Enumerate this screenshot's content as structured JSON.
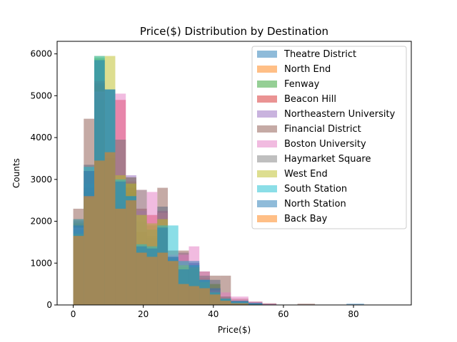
{
  "chart_data": {
    "type": "bar",
    "title": "Price($) Distribution by Destination",
    "xlabel": "Price($)",
    "ylabel": "Counts",
    "xlim": [
      -4.6,
      96.5
    ],
    "ylim": [
      0,
      6300
    ],
    "xticks": [
      0,
      20,
      40,
      60,
      80
    ],
    "yticks": [
      0,
      1000,
      2000,
      3000,
      4000,
      5000,
      6000
    ],
    "grid": false,
    "legend_position": "top-right",
    "bar_opacity": 0.5,
    "series": [
      {
        "name": "Theatre District",
        "color": "#1f77b4",
        "bins": [
          [
            0,
            3,
            2000
          ],
          [
            3,
            6,
            3350
          ],
          [
            6,
            9,
            5300
          ],
          [
            9,
            12,
            5150
          ],
          [
            12,
            15,
            2650
          ],
          [
            15,
            18,
            2900
          ],
          [
            18,
            21,
            2000
          ],
          [
            21,
            24,
            1600
          ],
          [
            24,
            27,
            2350
          ],
          [
            27,
            30,
            1150
          ],
          [
            30,
            33,
            950
          ],
          [
            33,
            36,
            1000
          ],
          [
            36,
            39,
            600
          ],
          [
            39,
            42,
            600
          ],
          [
            42,
            45,
            150
          ],
          [
            45,
            50,
            100
          ],
          [
            50,
            54,
            60
          ],
          [
            54,
            58,
            20
          ]
        ]
      },
      {
        "name": "North End",
        "color": "#ff7f0e",
        "bins": [
          [
            0,
            3,
            1650
          ],
          [
            3,
            6,
            3200
          ],
          [
            6,
            9,
            5250
          ],
          [
            9,
            12,
            3650
          ],
          [
            12,
            15,
            2400
          ],
          [
            15,
            18,
            2950
          ],
          [
            18,
            21,
            1500
          ],
          [
            21,
            24,
            1300
          ],
          [
            24,
            27,
            1800
          ],
          [
            27,
            30,
            950
          ],
          [
            30,
            33,
            700
          ],
          [
            33,
            36,
            900
          ],
          [
            36,
            39,
            400
          ],
          [
            39,
            42,
            350
          ],
          [
            42,
            45,
            100
          ],
          [
            45,
            50,
            60
          ],
          [
            50,
            54,
            20
          ]
        ]
      },
      {
        "name": "Fenway",
        "color": "#2ca02c",
        "bins": [
          [
            0,
            3,
            1950
          ],
          [
            3,
            6,
            2700
          ],
          [
            6,
            9,
            5900
          ],
          [
            9,
            12,
            3400
          ],
          [
            12,
            15,
            2400
          ],
          [
            15,
            18,
            2700
          ],
          [
            18,
            21,
            2750
          ],
          [
            21,
            24,
            1650
          ],
          [
            24,
            27,
            1800
          ],
          [
            27,
            30,
            1000
          ],
          [
            30,
            33,
            850
          ],
          [
            33,
            36,
            950
          ],
          [
            36,
            39,
            550
          ],
          [
            39,
            42,
            500
          ],
          [
            42,
            45,
            120
          ],
          [
            45,
            50,
            80
          ],
          [
            50,
            54,
            30
          ]
        ]
      },
      {
        "name": "Beacon Hill",
        "color": "#d62728",
        "bins": [
          [
            0,
            3,
            2050
          ],
          [
            3,
            6,
            2800
          ],
          [
            6,
            9,
            5350
          ],
          [
            9,
            12,
            3550
          ],
          [
            12,
            15,
            4900
          ],
          [
            15,
            18,
            2800
          ],
          [
            18,
            21,
            2300
          ],
          [
            21,
            24,
            2150
          ],
          [
            24,
            27,
            2200
          ],
          [
            27,
            30,
            1150
          ],
          [
            30,
            33,
            1050
          ],
          [
            33,
            36,
            900
          ],
          [
            36,
            39,
            650
          ],
          [
            39,
            42,
            400
          ],
          [
            42,
            45,
            200
          ],
          [
            45,
            50,
            80
          ],
          [
            50,
            54,
            30
          ]
        ]
      },
      {
        "name": "Northeastern University",
        "color": "#9467bd",
        "bins": [
          [
            0,
            3,
            1900
          ],
          [
            3,
            6,
            3200
          ],
          [
            6,
            9,
            5100
          ],
          [
            9,
            12,
            3650
          ],
          [
            12,
            15,
            2700
          ],
          [
            15,
            18,
            3100
          ],
          [
            18,
            21,
            2250
          ],
          [
            21,
            24,
            1950
          ],
          [
            24,
            27,
            2250
          ],
          [
            27,
            30,
            1150
          ],
          [
            30,
            33,
            1250
          ],
          [
            33,
            36,
            1000
          ],
          [
            36,
            39,
            700
          ],
          [
            39,
            42,
            400
          ],
          [
            42,
            45,
            200
          ],
          [
            45,
            50,
            100
          ],
          [
            50,
            54,
            40
          ]
        ]
      },
      {
        "name": "Financial District",
        "color": "#8c564b",
        "bins": [
          [
            0,
            3,
            2300
          ],
          [
            3,
            6,
            4450
          ],
          [
            6,
            9,
            5050
          ],
          [
            9,
            12,
            3500
          ],
          [
            12,
            15,
            3950
          ],
          [
            15,
            18,
            3050
          ],
          [
            18,
            21,
            1750
          ],
          [
            21,
            24,
            1900
          ],
          [
            24,
            27,
            2800
          ],
          [
            27,
            30,
            1300
          ],
          [
            30,
            33,
            1300
          ],
          [
            33,
            36,
            900
          ],
          [
            36,
            39,
            800
          ],
          [
            39,
            42,
            700
          ],
          [
            42,
            45,
            700
          ],
          [
            45,
            50,
            150
          ],
          [
            50,
            54,
            80
          ],
          [
            54,
            58,
            40
          ],
          [
            64,
            69,
            30
          ]
        ]
      },
      {
        "name": "Boston University",
        "color": "#e377c2",
        "bins": [
          [
            0,
            3,
            1850
          ],
          [
            3,
            6,
            2600
          ],
          [
            6,
            9,
            5100
          ],
          [
            9,
            12,
            5150
          ],
          [
            12,
            15,
            5050
          ],
          [
            15,
            18,
            2550
          ],
          [
            18,
            21,
            2750
          ],
          [
            21,
            24,
            2700
          ],
          [
            24,
            27,
            2200
          ],
          [
            27,
            30,
            1200
          ],
          [
            30,
            33,
            1200
          ],
          [
            33,
            36,
            1400
          ],
          [
            36,
            39,
            800
          ],
          [
            39,
            42,
            350
          ],
          [
            42,
            45,
            300
          ],
          [
            45,
            50,
            200
          ],
          [
            50,
            54,
            80
          ],
          [
            54,
            58,
            30
          ]
        ]
      },
      {
        "name": "Haymarket Square",
        "color": "#7f7f7f",
        "bins": [
          [
            0,
            3,
            1800
          ],
          [
            3,
            6,
            2900
          ],
          [
            6,
            9,
            4900
          ],
          [
            9,
            12,
            3600
          ],
          [
            12,
            15,
            3950
          ],
          [
            15,
            18,
            3050
          ],
          [
            18,
            21,
            2300
          ],
          [
            21,
            24,
            1800
          ],
          [
            24,
            27,
            2200
          ],
          [
            27,
            30,
            1100
          ],
          [
            30,
            33,
            900
          ],
          [
            33,
            36,
            850
          ],
          [
            36,
            39,
            700
          ],
          [
            39,
            42,
            400
          ],
          [
            42,
            45,
            200
          ],
          [
            45,
            50,
            100
          ],
          [
            50,
            54,
            40
          ]
        ]
      },
      {
        "name": "West End",
        "color": "#bcbd22",
        "bins": [
          [
            0,
            3,
            1700
          ],
          [
            3,
            6,
            2550
          ],
          [
            6,
            9,
            5950
          ],
          [
            9,
            12,
            5950
          ],
          [
            12,
            15,
            3100
          ],
          [
            15,
            18,
            2900
          ],
          [
            18,
            21,
            2150
          ],
          [
            21,
            24,
            1950
          ],
          [
            24,
            27,
            2050
          ],
          [
            27,
            30,
            1050
          ],
          [
            30,
            33,
            950
          ],
          [
            33,
            36,
            900
          ],
          [
            36,
            39,
            550
          ],
          [
            39,
            42,
            300
          ],
          [
            42,
            45,
            150
          ],
          [
            45,
            50,
            60
          ],
          [
            50,
            54,
            20
          ]
        ]
      },
      {
        "name": "South Station",
        "color": "#17becf",
        "bins": [
          [
            0,
            3,
            2050
          ],
          [
            3,
            6,
            3300
          ],
          [
            6,
            9,
            5950
          ],
          [
            9,
            12,
            5150
          ],
          [
            12,
            15,
            3000
          ],
          [
            15,
            18,
            2600
          ],
          [
            18,
            21,
            1450
          ],
          [
            21,
            24,
            1400
          ],
          [
            24,
            27,
            1900
          ],
          [
            27,
            30,
            1900
          ],
          [
            30,
            33,
            1050
          ],
          [
            33,
            36,
            950
          ],
          [
            36,
            39,
            600
          ],
          [
            39,
            42,
            300
          ],
          [
            42,
            45,
            150
          ],
          [
            45,
            50,
            80
          ],
          [
            50,
            54,
            30
          ]
        ]
      },
      {
        "name": "North Station",
        "color": "#1f77b4",
        "bins": [
          [
            0,
            3,
            1900
          ],
          [
            3,
            6,
            3200
          ],
          [
            6,
            9,
            5850
          ],
          [
            9,
            12,
            5150
          ],
          [
            12,
            15,
            2950
          ],
          [
            15,
            18,
            2600
          ],
          [
            18,
            21,
            1400
          ],
          [
            21,
            24,
            1350
          ],
          [
            24,
            27,
            1850
          ],
          [
            27,
            30,
            1150
          ],
          [
            30,
            33,
            850
          ],
          [
            33,
            36,
            1050
          ],
          [
            36,
            39,
            600
          ],
          [
            39,
            42,
            400
          ],
          [
            42,
            45,
            150
          ],
          [
            45,
            50,
            100
          ],
          [
            50,
            54,
            50
          ],
          [
            78,
            83,
            30
          ]
        ]
      },
      {
        "name": "Back Bay",
        "color": "#ff7f0e",
        "bins": [
          [
            0,
            3,
            1650
          ],
          [
            3,
            6,
            2600
          ],
          [
            6,
            9,
            3450
          ],
          [
            9,
            12,
            3650
          ],
          [
            12,
            15,
            2300
          ],
          [
            15,
            18,
            2500
          ],
          [
            18,
            21,
            1250
          ],
          [
            21,
            24,
            1150
          ],
          [
            24,
            27,
            1250
          ],
          [
            27,
            30,
            1050
          ],
          [
            30,
            33,
            500
          ],
          [
            33,
            36,
            450
          ],
          [
            36,
            39,
            400
          ],
          [
            39,
            42,
            250
          ],
          [
            42,
            45,
            100
          ],
          [
            45,
            50,
            40
          ]
        ]
      }
    ]
  }
}
